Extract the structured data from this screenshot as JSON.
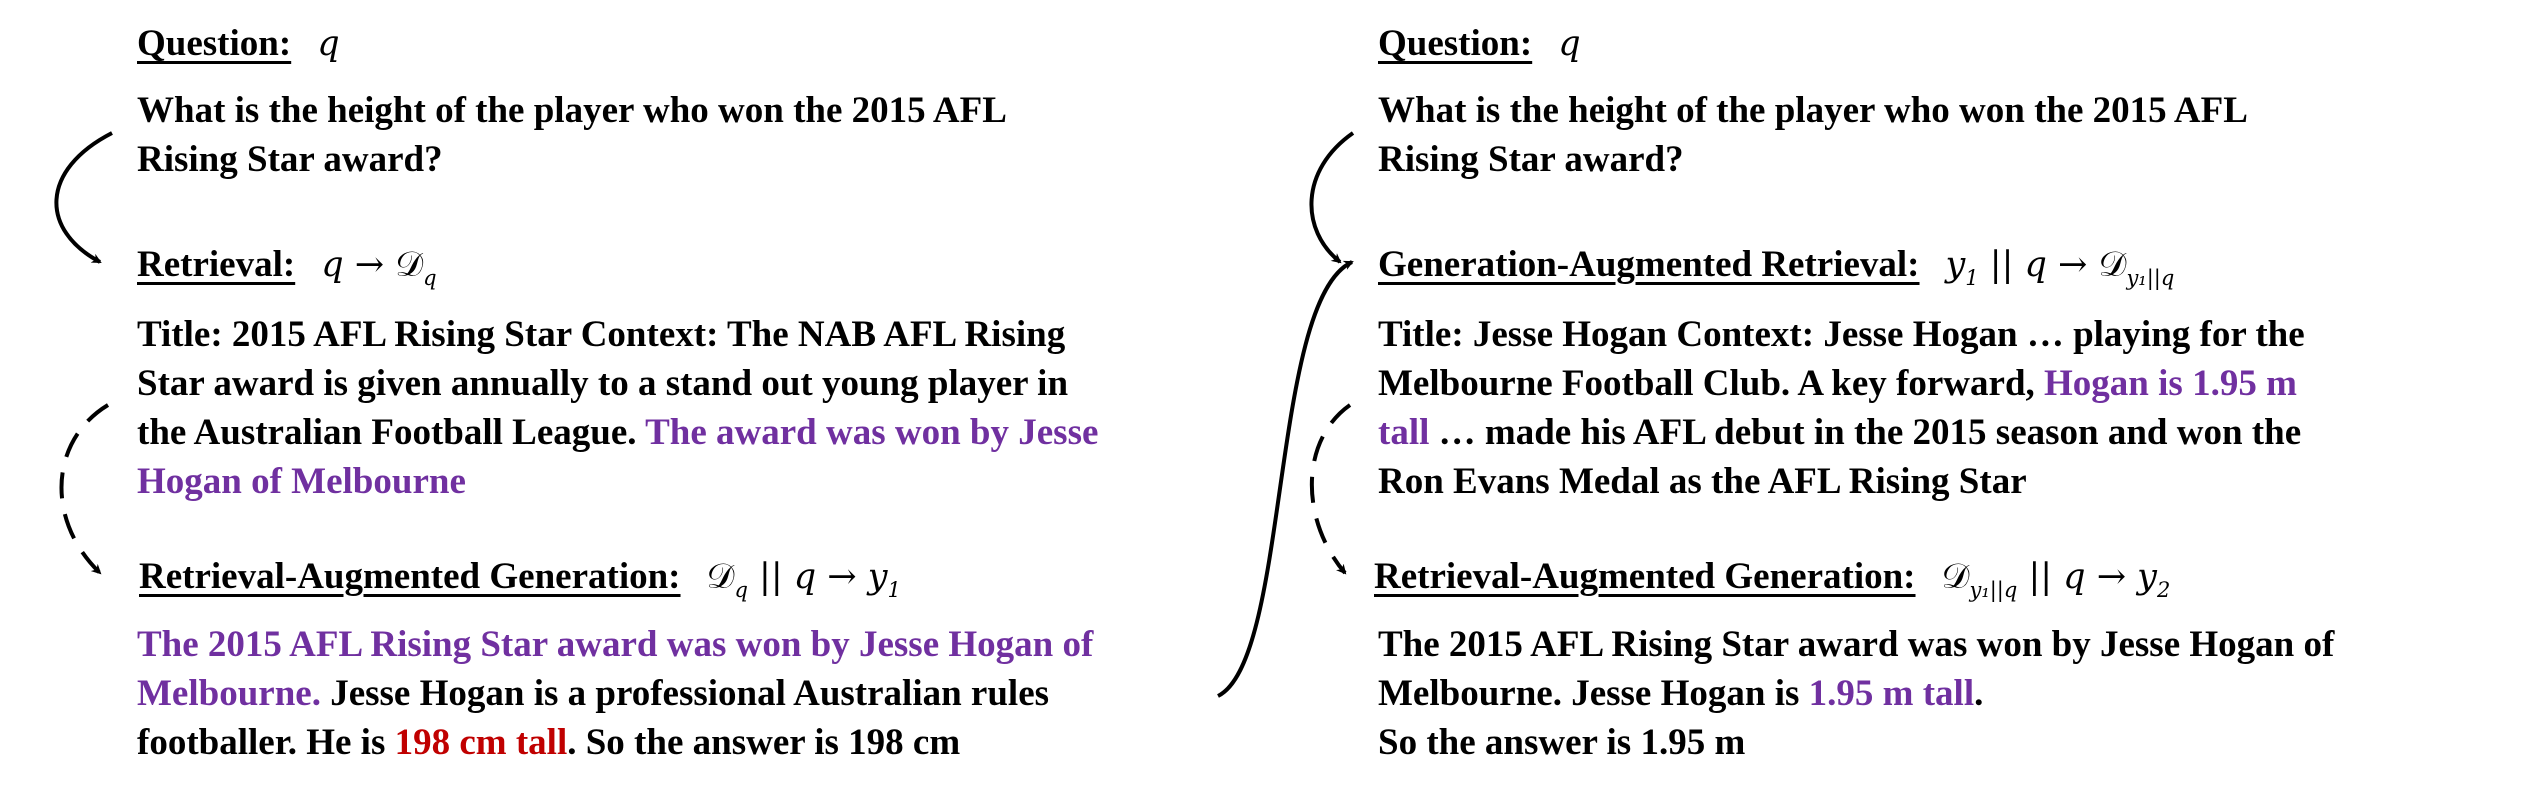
{
  "colors": {
    "text": "#000000",
    "highlight": "#7030a0",
    "error": "#c00000"
  },
  "left": {
    "question": {
      "label": "Question:",
      "math": "q",
      "lines": [
        "What is the height of the player who won the 2015 AFL",
        "Rising Star award?"
      ]
    },
    "retrieval": {
      "label": "Retrieval:",
      "math_q": "q",
      "math_arrow": "→",
      "math_D": "𝒟",
      "math_sub": "q",
      "line1": "Title: 2015 AFL Rising Star Context: The NAB AFL Rising",
      "line2": "Star award is given annually to a stand out young player in",
      "line3_plain": "the Australian Football League. ",
      "line3_hl": "The award was won by Jesse",
      "line4_hl": "Hogan of Melbourne"
    },
    "generation": {
      "label": "Retrieval-Augmented Generation:",
      "math_D": "𝒟",
      "math_sub": "q",
      "math_rest": " || q → y",
      "math_out_sub": "1",
      "line1_hl": "The 2015 AFL Rising Star award was won by Jesse Hogan of",
      "line2_hl": "Melbourne.",
      "line2_plain": " Jesse Hogan is a professional Australian rules",
      "line3_a": "footballer. He is ",
      "line3_red": "198 cm tall",
      "line3_b": ". So the answer is 198 cm"
    }
  },
  "right": {
    "question": {
      "label": "Question:",
      "math": "q",
      "lines": [
        "What is the height of the player who won the 2015 AFL",
        "Rising Star award?"
      ]
    },
    "retrieval": {
      "label": "Generation-Augmented Retrieval:",
      "math_y": "y",
      "math_y_sub": "1",
      "math_rest": " || q → ",
      "math_D": "𝒟",
      "math_D_sub": "y₁||q",
      "line1": "Title: Jesse Hogan Context: Jesse Hogan … playing for the",
      "line2_plain": "Melbourne Football Club. A key forward, ",
      "line2_hl": "Hogan is 1.95 m",
      "line3_hl": "tall",
      "line3_plain": " … made his AFL debut in the 2015 season and won the",
      "line4": "Ron Evans Medal as the AFL Rising Star"
    },
    "generation": {
      "label": "Retrieval-Augmented Generation:",
      "math_D": "𝒟",
      "math_D_sub": "y₁||q",
      "math_rest": " || q → y",
      "math_out_sub": "2",
      "line1": "The 2015 AFL Rising Star award was won by Jesse Hogan of",
      "line2_plain": "Melbourne. Jesse Hogan is ",
      "line2_hl": "1.95 m tall",
      "line2_end": ".",
      "line3": "So the answer is 1.95 m"
    }
  }
}
